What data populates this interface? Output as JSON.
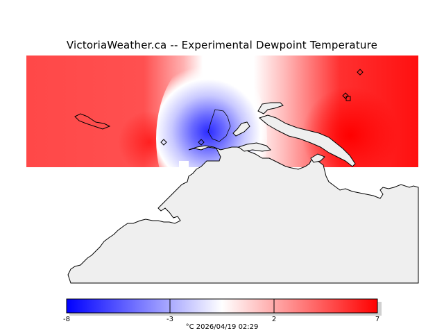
{
  "title": "VictoriaWeather.ca -- Experimental Dewpoint Temperature",
  "colorbar": {
    "min": -8,
    "max": 7,
    "ticks": [
      "-8",
      "-3",
      "2",
      "7"
    ],
    "tick_values": [
      -8,
      -3,
      2,
      7
    ],
    "colors": [
      "#0000ff",
      "#ffffff",
      "#ff0000"
    ]
  },
  "caption": "°C  2026/04/19 02:29",
  "land_color": "#efefef",
  "map_markers": [
    {
      "name": "station-west"
    },
    {
      "name": "station-central"
    },
    {
      "name": "station-ne"
    },
    {
      "name": "station-east"
    }
  ]
}
